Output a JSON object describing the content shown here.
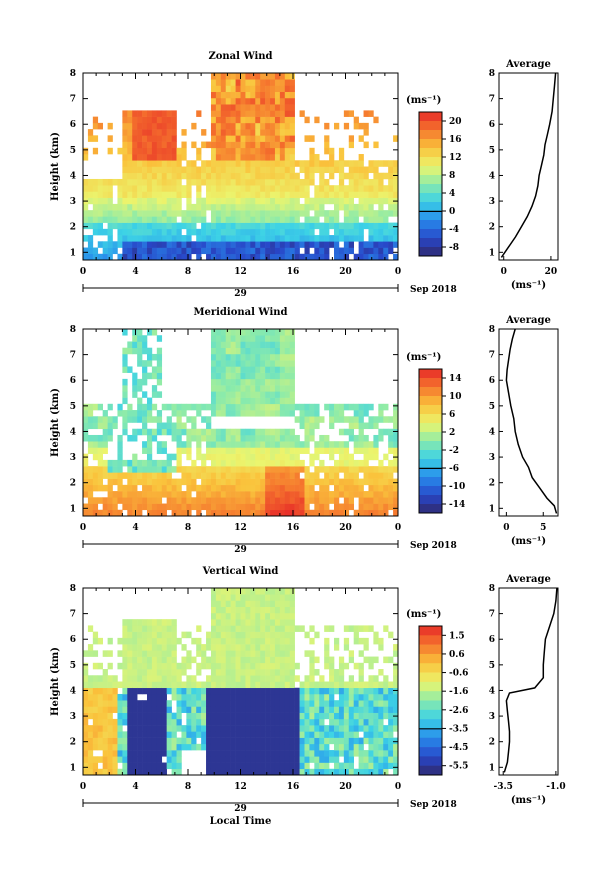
{
  "chart_data": [
    {
      "type": "heatmap",
      "title": "Zonal Wind",
      "ylabel": "Height (km)",
      "xlabel": "",
      "x_ticks": [
        "0",
        "4",
        "8",
        "12",
        "16",
        "20",
        "0"
      ],
      "y_ticks": [
        "1",
        "2",
        "3",
        "4",
        "5",
        "6",
        "7",
        "8"
      ],
      "date_day": "29",
      "date_month": "Sep 2018",
      "xlim": [
        0,
        24
      ],
      "ylim": [
        0.7,
        8
      ],
      "colorbar_unit": "(ms⁻¹)",
      "colorbar_ticks": [
        "20",
        "16",
        "12",
        "8",
        "4",
        "0",
        "-4",
        "-8"
      ],
      "colorbar_range": [
        -10,
        22
      ],
      "average": {
        "title": "Average",
        "xlabel": "(ms⁻¹)",
        "x_ticks": [
          "0",
          "20"
        ],
        "xlim": [
          -2,
          23
        ],
        "profile_height": [
          0.8,
          1.2,
          1.6,
          2.0,
          2.4,
          2.8,
          3.2,
          3.6,
          4.0,
          4.4,
          4.8,
          5.2,
          5.6,
          6.0,
          6.5,
          7.0,
          7.5,
          8.0
        ],
        "profile_value": [
          -1,
          2,
          5,
          7.5,
          10,
          12,
          13.5,
          14.5,
          15,
          16,
          17,
          17.5,
          18.5,
          19.5,
          20.5,
          21,
          21.5,
          22
        ]
      }
    },
    {
      "type": "heatmap",
      "title": "Meridional Wind",
      "ylabel": "Height (km)",
      "xlabel": "",
      "x_ticks": [
        "0",
        "4",
        "8",
        "12",
        "16",
        "20",
        "0"
      ],
      "y_ticks": [
        "1",
        "2",
        "3",
        "4",
        "5",
        "6",
        "7",
        "8"
      ],
      "date_day": "29",
      "date_month": "Sep 2018",
      "xlim": [
        0,
        24
      ],
      "ylim": [
        0.7,
        8
      ],
      "colorbar_unit": "(ms⁻¹)",
      "colorbar_ticks": [
        "14",
        "10",
        "6",
        "2",
        "-2",
        "-6",
        "-10",
        "-14"
      ],
      "colorbar_range": [
        -16,
        16
      ],
      "average": {
        "title": "Average",
        "xlabel": "(ms⁻¹)",
        "x_ticks": [
          "0",
          "5"
        ],
        "xlim": [
          -1,
          7
        ],
        "profile_height": [
          0.8,
          1.1,
          1.4,
          1.8,
          2.2,
          2.6,
          3.0,
          3.5,
          4.0,
          4.5,
          5.0,
          5.5,
          6.0,
          6.4,
          6.8,
          7.2,
          7.6,
          8.0
        ],
        "profile_value": [
          6.8,
          6.5,
          5.5,
          4.5,
          3.5,
          3.0,
          2.2,
          1.6,
          1.2,
          1.0,
          0.6,
          0.3,
          0.0,
          0.1,
          0.3,
          0.5,
          0.8,
          1.2
        ]
      }
    },
    {
      "type": "heatmap",
      "title": "Vertical Wind",
      "ylabel": "Height (km)",
      "xlabel": "Local Time",
      "x_ticks": [
        "0",
        "4",
        "8",
        "12",
        "16",
        "20",
        "0"
      ],
      "y_ticks": [
        "1",
        "2",
        "3",
        "4",
        "5",
        "6",
        "7",
        "8"
      ],
      "date_day": "29",
      "date_month": "Sep 2018",
      "xlim": [
        0,
        24
      ],
      "ylim": [
        0.7,
        8
      ],
      "colorbar_unit": "(ms⁻¹)",
      "colorbar_ticks": [
        "1.5",
        "0.6",
        "-0.6",
        "-1.6",
        "-2.6",
        "-3.5",
        "-4.5",
        "-5.5"
      ],
      "colorbar_range": [
        -6,
        2
      ],
      "average": {
        "title": "Average",
        "xlabel": "(ms⁻¹)",
        "x_ticks": [
          "-3.5",
          "-1.0"
        ],
        "xlim": [
          -3.7,
          -0.9
        ],
        "profile_height": [
          0.8,
          1.2,
          1.6,
          2.0,
          2.4,
          2.8,
          3.2,
          3.6,
          3.9,
          4.1,
          4.5,
          5.0,
          5.5,
          6.0,
          6.5,
          7.0,
          7.5,
          8.0
        ],
        "profile_value": [
          -3.45,
          -3.3,
          -3.25,
          -3.2,
          -3.2,
          -3.25,
          -3.3,
          -3.35,
          -3.2,
          -2.0,
          -1.6,
          -1.6,
          -1.55,
          -1.5,
          -1.3,
          -1.1,
          -1.0,
          -0.95
        ]
      }
    }
  ]
}
